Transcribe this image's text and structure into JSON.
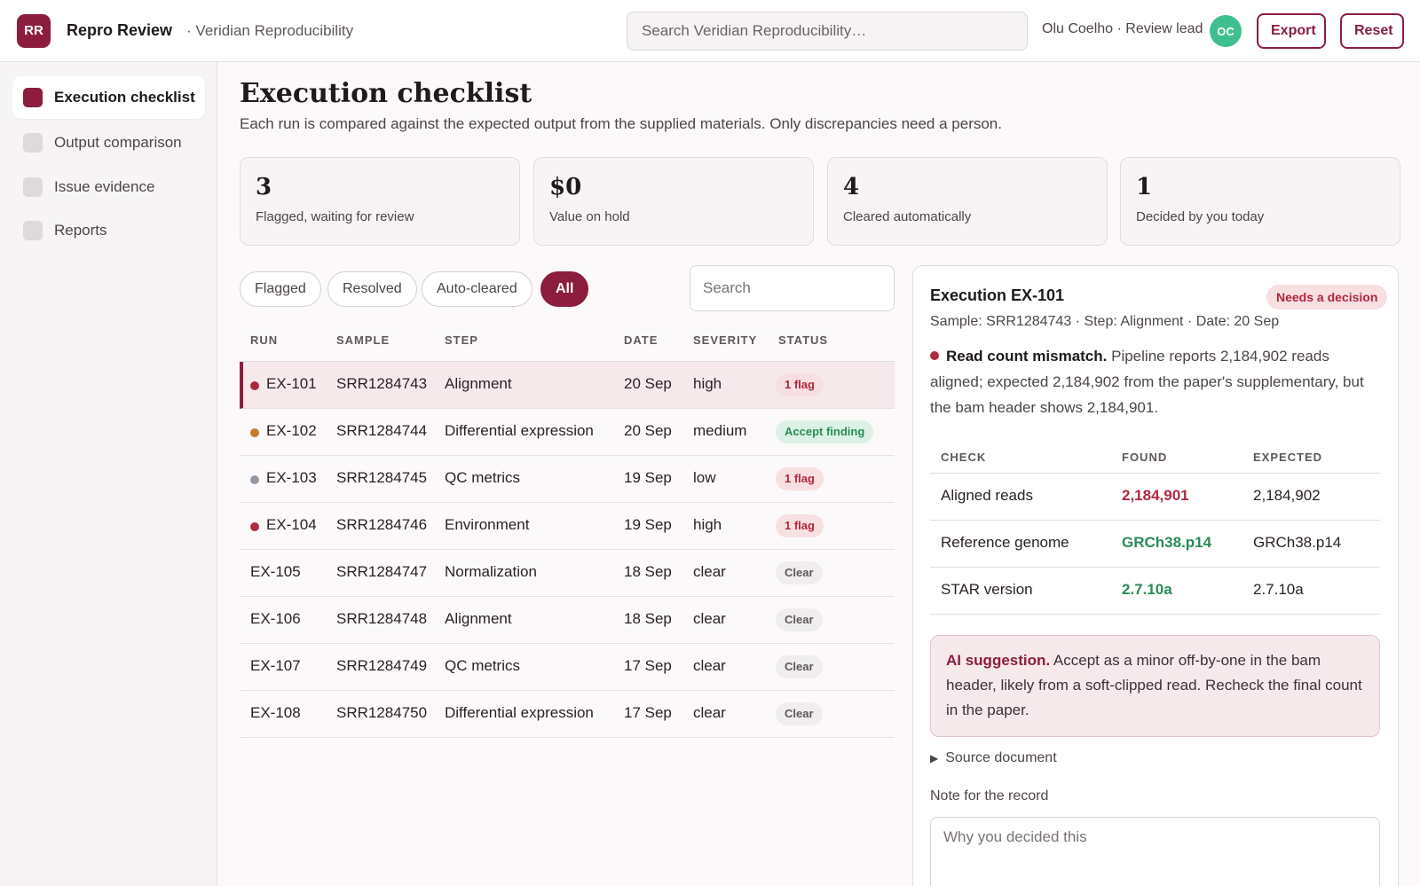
{
  "header": {
    "logo": "RR",
    "app_name": "Repro Review",
    "workspace": "· Veridian Reproducibility",
    "search_placeholder": "Search Veridian Reproducibility…",
    "user": "Olu Coelho · Review lead",
    "avatar": "OC",
    "export_label": "Export",
    "reset_label": "Reset"
  },
  "sidebar": {
    "items": [
      {
        "label": "Execution checklist",
        "active": true
      },
      {
        "label": "Output comparison",
        "active": false
      },
      {
        "label": "Issue evidence",
        "active": false
      },
      {
        "label": "Reports",
        "active": false
      }
    ]
  },
  "main": {
    "title": "Execution checklist",
    "subtitle": "Each run is compared against the expected output from the supplied materials. Only discrepancies need a person.",
    "stats": [
      {
        "value": "3",
        "label": "Flagged, waiting for review"
      },
      {
        "value": "$0",
        "label": "Value on hold"
      },
      {
        "value": "4",
        "label": "Cleared automatically"
      },
      {
        "value": "1",
        "label": "Decided by you today"
      }
    ],
    "filters": [
      "Flagged",
      "Resolved",
      "Auto-cleared",
      "All"
    ],
    "active_filter": "All",
    "search_placeholder": "Search"
  },
  "table": {
    "columns": [
      "RUN",
      "SAMPLE",
      "STEP",
      "DATE",
      "SEVERITY",
      "STATUS"
    ],
    "rows": [
      {
        "run": "EX-101",
        "sample": "SRR1284743",
        "step": "Alignment",
        "date": "20 Sep",
        "severity": "high",
        "status": "1 flag",
        "status_kind": "flag",
        "dot": "#b0283f",
        "selected": true
      },
      {
        "run": "EX-102",
        "sample": "SRR1284744",
        "step": "Differential expression",
        "date": "20 Sep",
        "severity": "medium",
        "status": "Accept finding",
        "status_kind": "accept",
        "dot": "#c77a2a",
        "selected": false
      },
      {
        "run": "EX-103",
        "sample": "SRR1284745",
        "step": "QC metrics",
        "date": "19 Sep",
        "severity": "low",
        "status": "1 flag",
        "status_kind": "flag",
        "dot": "#9a96a6",
        "selected": false
      },
      {
        "run": "EX-104",
        "sample": "SRR1284746",
        "step": "Environment",
        "date": "19 Sep",
        "severity": "high",
        "status": "1 flag",
        "status_kind": "flag",
        "dot": "#b0283f",
        "selected": false
      },
      {
        "run": "EX-105",
        "sample": "SRR1284747",
        "step": "Normalization",
        "date": "18 Sep",
        "severity": "clear",
        "status": "Clear",
        "status_kind": "clear",
        "dot": null,
        "selected": false
      },
      {
        "run": "EX-106",
        "sample": "SRR1284748",
        "step": "Alignment",
        "date": "18 Sep",
        "severity": "clear",
        "status": "Clear",
        "status_kind": "clear",
        "dot": null,
        "selected": false
      },
      {
        "run": "EX-107",
        "sample": "SRR1284749",
        "step": "QC metrics",
        "date": "17 Sep",
        "severity": "clear",
        "status": "Clear",
        "status_kind": "clear",
        "dot": null,
        "selected": false
      },
      {
        "run": "EX-108",
        "sample": "SRR1284750",
        "step": "Differential expression",
        "date": "17 Sep",
        "severity": "clear",
        "status": "Clear",
        "status_kind": "clear",
        "dot": null,
        "selected": false
      }
    ]
  },
  "detail": {
    "title": "Execution EX-101",
    "badge": "Needs a decision",
    "meta": "Sample: SRR1284743 · Step: Alignment · Date: 20 Sep",
    "issue_title": "Read count mismatch.",
    "issue_text": "Pipeline reports 2,184,902 reads aligned; expected 2,184,902 from the paper's supplementary, but the bam header shows 2,184,901.",
    "columns": [
      "CHECK",
      "FOUND",
      "EXPECTED"
    ],
    "checks": [
      {
        "check": "Aligned reads",
        "found": "2,184,901",
        "expected": "2,184,902",
        "ok": false
      },
      {
        "check": "Reference genome",
        "found": "GRCh38.p14",
        "expected": "GRCh38.p14",
        "ok": true
      },
      {
        "check": "STAR version",
        "found": "2.7.10a",
        "expected": "2.7.10a",
        "ok": true
      }
    ],
    "ai_label": "AI suggestion.",
    "ai_text": "Accept as a minor off-by-one in the bam header, likely from a soft-clipped read. Recheck the final count in the paper.",
    "source_label": "Source document",
    "note_label": "Note for the record",
    "note_placeholder": "Why you decided this"
  },
  "colors": {
    "accent": "#8c1d3e",
    "danger": "#b0283f",
    "success": "#2a8a5a",
    "avatar": "#3fbf8f"
  }
}
